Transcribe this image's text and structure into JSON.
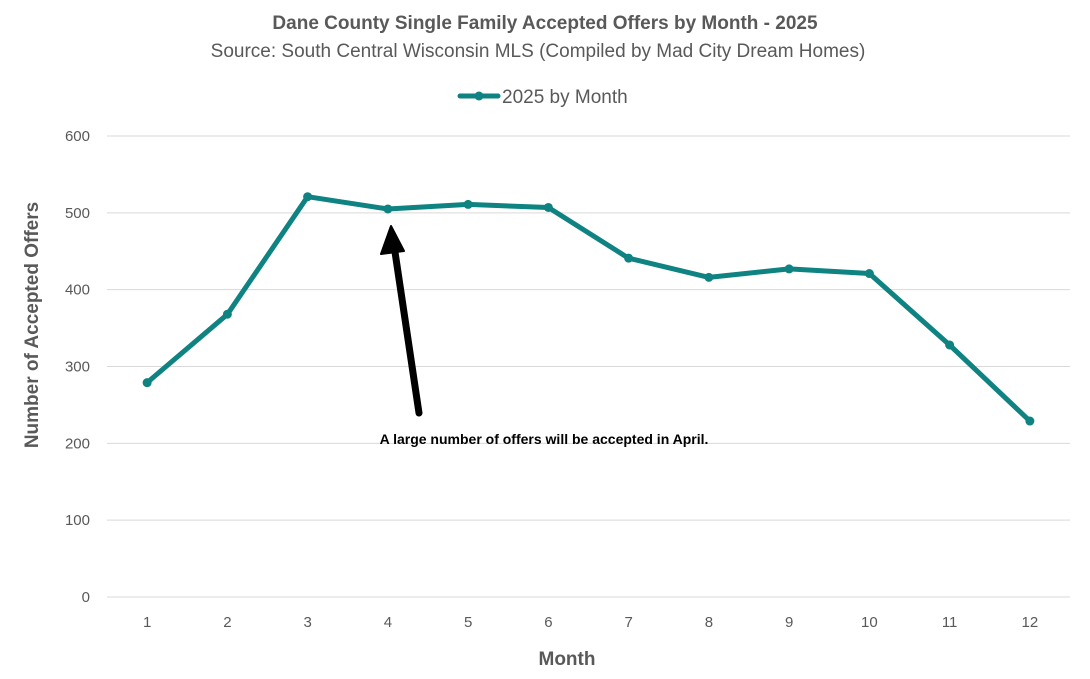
{
  "chart_data": {
    "type": "line",
    "title": "Dane County Single Family Accepted Offers by Month - 2025",
    "subtitle": "Source: South Central Wisconsin MLS (Compiled by Mad City Dream Homes)",
    "xlabel": "Month",
    "ylabel": "Number of Accepted Offers",
    "categories": [
      "1",
      "2",
      "3",
      "4",
      "5",
      "6",
      "7",
      "8",
      "9",
      "10",
      "11",
      "12"
    ],
    "series": [
      {
        "name": "2025 by Month",
        "values": [
          279,
          368,
          521,
          505,
          511,
          507,
          441,
          416,
          427,
          421,
          328,
          229
        ]
      }
    ],
    "ylim": [
      0,
      600
    ],
    "yticks": [
      0,
      100,
      200,
      300,
      400,
      500,
      600
    ],
    "grid": true,
    "legend": "top-center",
    "annotation": {
      "text": "A large number of offers will be accepted in April.",
      "target_category": "4"
    },
    "colors": {
      "series": "#0f8282",
      "arrow": "#000000",
      "grid": "#d9d9d9",
      "text": "#595959"
    }
  }
}
